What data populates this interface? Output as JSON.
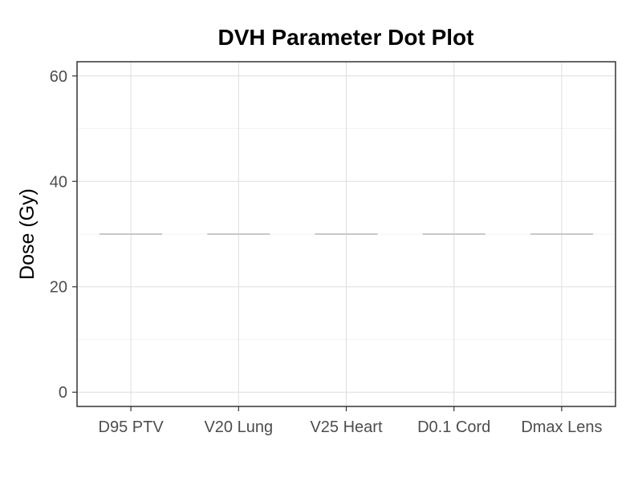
{
  "chart_data": {
    "type": "scatter",
    "title": "DVH Parameter Dot Plot",
    "xlabel": "",
    "ylabel": "Dose (Gy)",
    "categories": [
      "D95 PTV",
      "V20 Lung",
      "V25 Heart",
      "D0.1 Cord",
      "Dmax Lens"
    ],
    "reference_values": [
      30,
      30,
      30,
      30,
      30
    ],
    "ylim": [
      -2.7,
      62.7
    ],
    "yticks": [
      0,
      20,
      40,
      60
    ],
    "yticks_minor": [
      10,
      30,
      50
    ],
    "grid": true,
    "legend": "none"
  },
  "colors": {
    "background": "#ffffff",
    "panel_border": "#333333",
    "grid_major": "#dedede",
    "grid_minor": "#efefef",
    "reference_line": "#c8c8c8",
    "tick_text": "#4d4d4d",
    "title_text": "#000000"
  }
}
